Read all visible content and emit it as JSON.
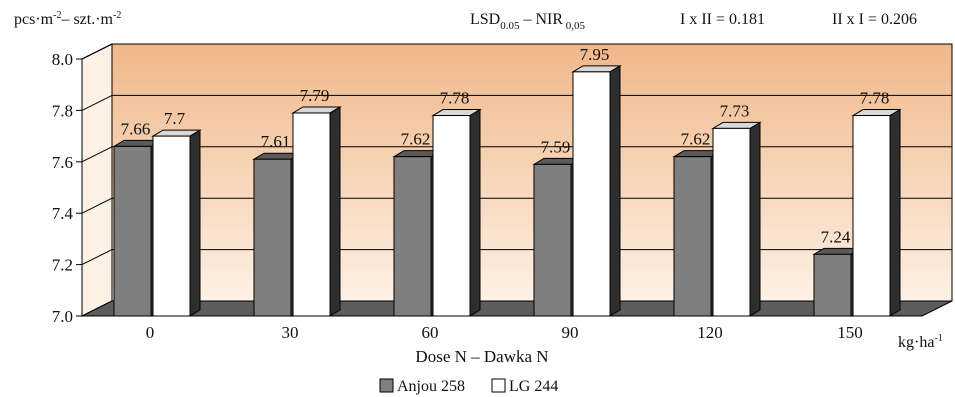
{
  "chart_data": {
    "type": "bar",
    "ylabel_html": [
      "pcs·m",
      "-2",
      "– szt.·m",
      "-2"
    ],
    "stats": {
      "lsd": {
        "base1": "LSD",
        "sub1": "0.05",
        "mid": " – NIR",
        "sub2": " 0,05"
      },
      "i_x_ii": "I x II = 0.181",
      "ii_x_i": "II x I = 0.206"
    },
    "categories": [
      "0",
      "30",
      "60",
      "90",
      "120",
      "150"
    ],
    "series": [
      {
        "name": "Anjou 258",
        "values": [
          7.66,
          7.61,
          7.62,
          7.59,
          7.62,
          7.24
        ],
        "labels": [
          "7.66",
          "7.61",
          "7.62",
          "7.59",
          "7.62",
          "7.24"
        ]
      },
      {
        "name": "LG 244",
        "values": [
          7.7,
          7.79,
          7.78,
          7.95,
          7.73,
          7.78
        ],
        "labels": [
          "7.7",
          "7.79",
          "7.78",
          "7.95",
          "7.73",
          "7.78"
        ]
      }
    ],
    "yticks": [
      "7.0",
      "7.2",
      "7.4",
      "7.6",
      "7.8",
      "8.0"
    ],
    "ylim": [
      7.0,
      8.0
    ],
    "xlabel": "Dose N – Dawka N",
    "unit": {
      "base": "kg·ha",
      "sup": "-1"
    },
    "colors": {
      "anjou": "#7f7f7f",
      "anjou_side": "#3a3a3a",
      "anjou_top": "#5a5a5a",
      "lg": "#ffffff",
      "lg_side": "#2e2e2e",
      "lg_top": "#d8d8d8",
      "wall_top": "#f0b88a",
      "wall_bottom": "#fdf1e5",
      "floor": "#5c5c5c"
    },
    "legend_position": "bottom-center",
    "grid": true
  }
}
